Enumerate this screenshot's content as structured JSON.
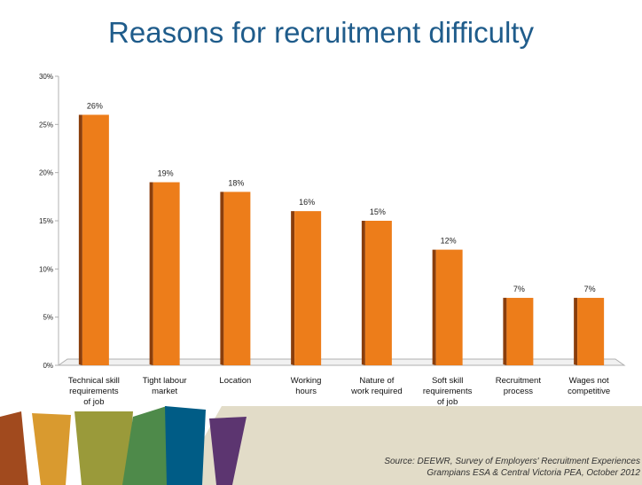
{
  "slide": {
    "source_line1": "Source: DEEWR, Survey of Employers' Recruitment Experiences",
    "source_line2": "Grampians ESA & Central Victoria PEA, October 2012"
  },
  "chart_data": {
    "type": "bar",
    "title": "Reasons for recruitment difficulty",
    "categories": [
      [
        "Technical skill",
        "requirements",
        "of job"
      ],
      [
        "Tight labour",
        "market"
      ],
      [
        "Location"
      ],
      [
        "Working",
        "hours"
      ],
      [
        "Nature of",
        "work required"
      ],
      [
        "Soft skill",
        "requirements",
        "of job"
      ],
      [
        "Recruitment",
        "process"
      ],
      [
        "Wages not",
        "competitive"
      ]
    ],
    "values": [
      26,
      19,
      18,
      16,
      15,
      12,
      7,
      7
    ],
    "data_labels": [
      "26%",
      "19%",
      "18%",
      "16%",
      "15%",
      "12%",
      "7%",
      "7%"
    ],
    "y_ticks": [
      "0%",
      "5%",
      "10%",
      "15%",
      "20%",
      "25%",
      "30%"
    ],
    "ylim": [
      0,
      30
    ],
    "grid": false,
    "colors": {
      "bar": "#ed7d1a",
      "bar_side": "#8a3e0c",
      "title": "#1f5c8b",
      "axis": "#b0b0b0"
    }
  },
  "decor": {
    "stripe_colors": [
      "#a14a1e",
      "#d99a2f",
      "#9a9a3a",
      "#4e8a4a",
      "#005c86",
      "#5c3570"
    ],
    "band_color": "#e2dcc8"
  }
}
